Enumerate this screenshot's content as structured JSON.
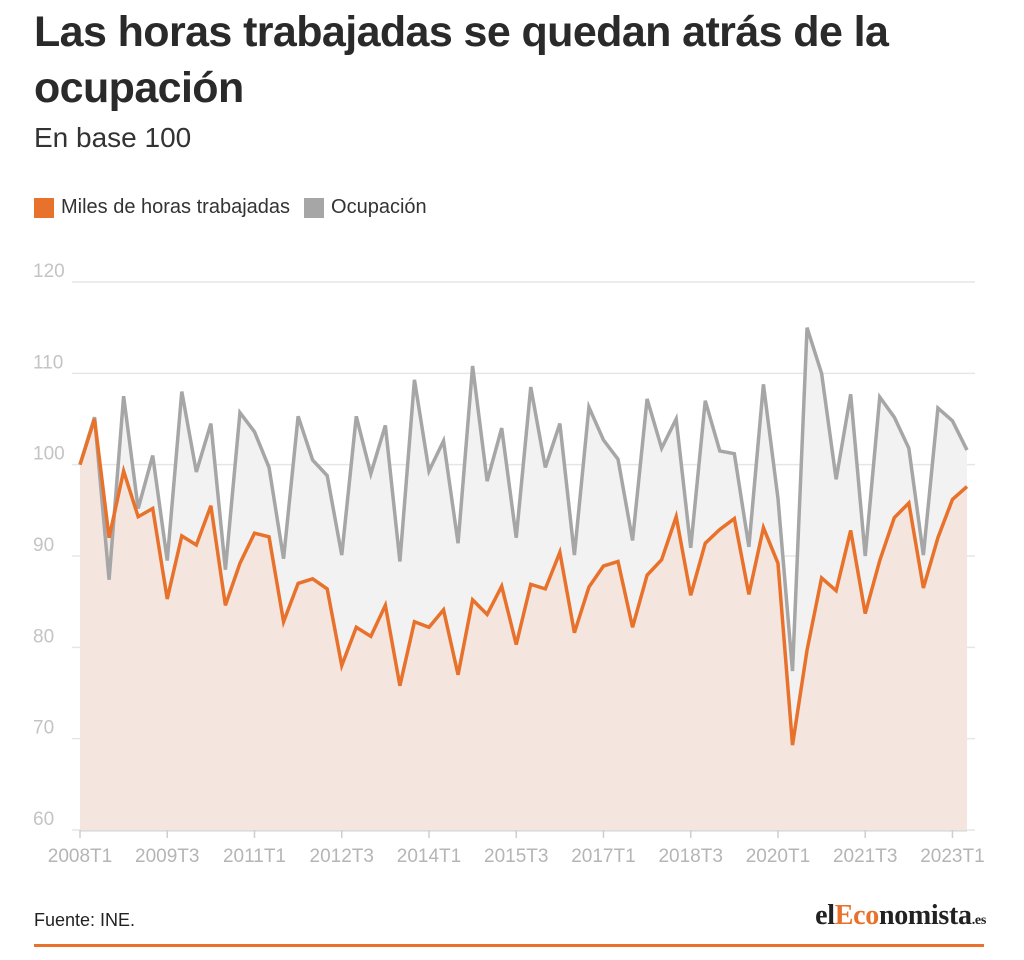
{
  "title": "Las horas trabajadas se quedan atrás de la ocupación",
  "subtitle": "En base 100",
  "legend": [
    {
      "label": "Miles de horas trabajadas",
      "color": "#e8722c"
    },
    {
      "label": "Ocupación",
      "color": "#a6a6a6"
    }
  ],
  "source": "Fuente: INE.",
  "brand": {
    "part1": "el",
    "part2": "Eco",
    "part3": "nomista",
    "part4": ".es"
  },
  "chart_data": {
    "type": "area",
    "title": "Las horas trabajadas se quedan atrás de la ocupación",
    "subtitle": "En base 100",
    "ylim": [
      60,
      120
    ],
    "yticks": [
      60,
      70,
      80,
      90,
      100,
      110,
      120
    ],
    "grid": true,
    "legend_position": "top-left",
    "x_tick_labels": [
      "2008T1",
      "2009T3",
      "2011T1",
      "2012T3",
      "2014T1",
      "2015T3",
      "2017T1",
      "2018T3",
      "2020T1",
      "2021T3",
      "2023T1"
    ],
    "x_tick_indices": [
      0,
      6,
      12,
      18,
      24,
      30,
      36,
      42,
      48,
      54,
      60
    ],
    "x": [
      "2008T1",
      "2008T2",
      "2008T3",
      "2008T4",
      "2009T1",
      "2009T2",
      "2009T3",
      "2009T4",
      "2010T1",
      "2010T2",
      "2010T3",
      "2010T4",
      "2011T1",
      "2011T2",
      "2011T3",
      "2011T4",
      "2012T1",
      "2012T2",
      "2012T3",
      "2012T4",
      "2013T1",
      "2013T2",
      "2013T3",
      "2013T4",
      "2014T1",
      "2014T2",
      "2014T3",
      "2014T4",
      "2015T1",
      "2015T2",
      "2015T3",
      "2015T4",
      "2016T1",
      "2016T2",
      "2016T3",
      "2016T4",
      "2017T1",
      "2017T2",
      "2017T3",
      "2017T4",
      "2018T1",
      "2018T2",
      "2018T3",
      "2018T4",
      "2019T1",
      "2019T2",
      "2019T3",
      "2019T4",
      "2020T1",
      "2020T2",
      "2020T3",
      "2020T4",
      "2021T1",
      "2021T2",
      "2021T3",
      "2021T4",
      "2022T1",
      "2022T2",
      "2022T3",
      "2022T4",
      "2023T1",
      "2023T2"
    ],
    "series": [
      {
        "name": "Miles de horas trabajadas",
        "color": "#e8722c",
        "values": [
          100,
          105,
          92,
          99.3,
          94.3,
          95.2,
          85.3,
          92.2,
          91.2,
          95.5,
          84.6,
          89.2,
          92.5,
          92.1,
          82.8,
          87,
          87.5,
          86.4,
          78,
          82.2,
          81.2,
          84.6,
          75.8,
          82.8,
          82.2,
          84.1,
          77,
          85.2,
          83.6,
          86.7,
          80.3,
          86.9,
          86.4,
          90.4,
          81.6,
          86.6,
          88.9,
          89.4,
          82.2,
          87.9,
          89.6,
          94.3,
          85.7,
          91.4,
          92.9,
          94.1,
          85.8,
          93.1,
          89.2,
          69.3,
          79.7,
          87.6,
          86.2,
          92.8,
          83.7,
          89.5,
          94.2,
          95.8,
          86.5,
          92,
          96.2,
          97.6
        ]
      },
      {
        "name": "Ocupación",
        "color": "#a6a6a6",
        "values": [
          100,
          105.2,
          87.4,
          107.5,
          95.2,
          101,
          89.5,
          108,
          99.2,
          104.5,
          88.5,
          105.7,
          103.6,
          99.7,
          89.7,
          105.3,
          100.5,
          98.8,
          90.1,
          105.3,
          99,
          104.3,
          89.4,
          109.3,
          99.3,
          102.6,
          91.4,
          110.8,
          98.2,
          104,
          92,
          108.5,
          99.7,
          104.5,
          90.1,
          106.3,
          102.7,
          100.6,
          91.7,
          107.2,
          101.8,
          105,
          90.9,
          107,
          101.5,
          101.2,
          91,
          108.8,
          96.3,
          77.4,
          115,
          110,
          98.4,
          107.7,
          90,
          107.4,
          105.2,
          101.8,
          90.1,
          106.2,
          104.8,
          101.6
        ]
      }
    ]
  }
}
